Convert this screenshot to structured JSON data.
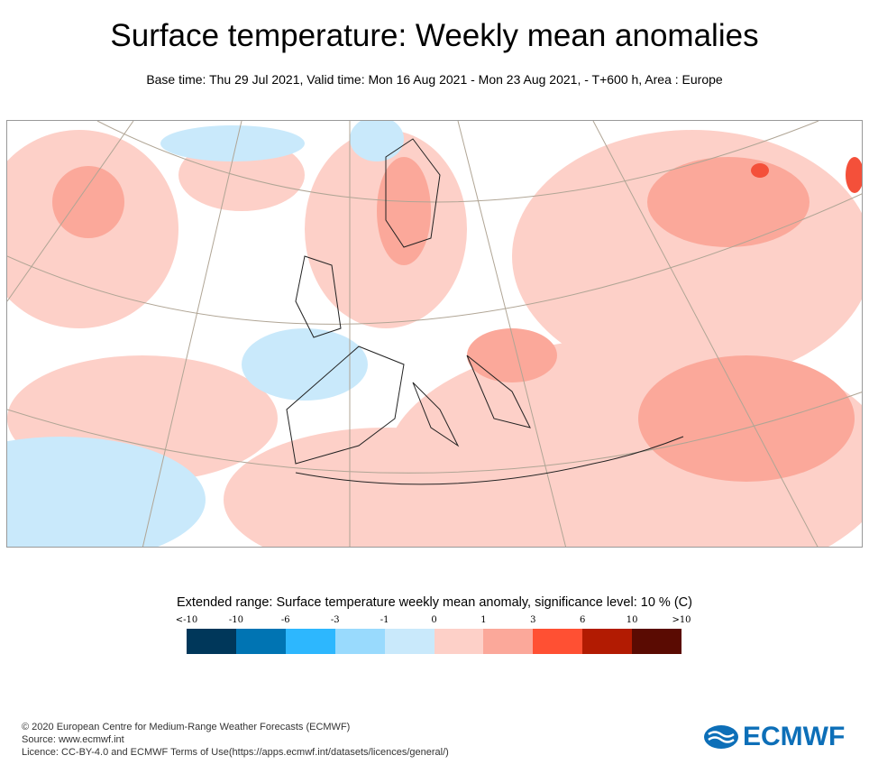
{
  "title": "Surface temperature: Weekly mean anomalies",
  "subtitle": "Base time: Thu 29 Jul 2021, Valid time: Mon 16 Aug 2021 - Mon 23 Aug 2021, - T+600 h, Area : Europe",
  "map": {
    "area": "Europe",
    "colors": {
      "warm_light": "#fdd0c8",
      "warm": "#fba89a",
      "cool_light": "#c9e9fb",
      "cool": "#99dafd",
      "hot": "#f4503a"
    }
  },
  "legend": {
    "title": "Extended range: Surface temperature weekly mean anomaly, significance level: 10 % (C)",
    "ticks": [
      "<-10",
      "-10",
      "-6",
      "-3",
      "-1",
      "0",
      "1",
      "3",
      "6",
      "10",
      ">10"
    ],
    "colors": [
      "#00375a",
      "#0074b3",
      "#2db7fe",
      "#99dafd",
      "#c9e9fb",
      "#fdd0c8",
      "#fba89a",
      "#ff5033",
      "#b21b02",
      "#5a0b02"
    ]
  },
  "footer": {
    "copyright": "© 2020 European Centre for Medium-Range Weather Forecasts (ECMWF)",
    "source": "Source: www.ecmwf.int",
    "licence": "Licence: CC-BY-4.0 and ECMWF Terms of Use(https://apps.ecmwf.int/datasets/licences/general/)"
  },
  "logo": {
    "text": "ECMWF"
  }
}
